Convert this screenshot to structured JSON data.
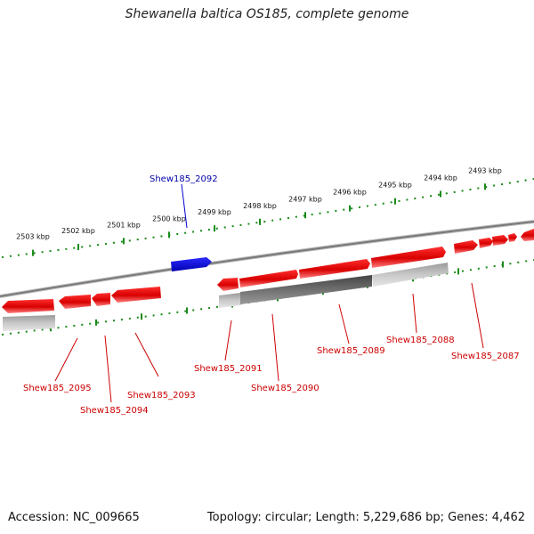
{
  "title": "Shewanella baltica OS185, complete genome",
  "footer": {
    "accession": "Accession: NC_009665",
    "summary": "Topology: circular; Length: 5,229,686 bp; Genes: 4,462"
  },
  "colors": {
    "forward_gene": "#e00000",
    "reverse_gene": "#e00000",
    "highlight_gene": "#0000cc",
    "genome_line": "#888888",
    "ticks": "#1a8a1a",
    "label_red": "#cc0000",
    "label_blue": "#0000aa"
  },
  "scale_labels": [
    "2503 kbp",
    "2502 kbp",
    "2501 kbp",
    "2500 kbp",
    "2499 kbp",
    "2498 kbp",
    "2497 kbp",
    "2496 kbp",
    "2495 kbp",
    "2494 kbp",
    "2493 kbp"
  ],
  "gene_labels": [
    {
      "text": "Shew185_2092",
      "color": "blue"
    },
    {
      "text": "Shew185_2095",
      "color": "red"
    },
    {
      "text": "Shew185_2094",
      "color": "red"
    },
    {
      "text": "Shew185_2093",
      "color": "red"
    },
    {
      "text": "Shew185_2091",
      "color": "red"
    },
    {
      "text": "Shew185_2090",
      "color": "red"
    },
    {
      "text": "Shew185_2089",
      "color": "red"
    },
    {
      "text": "Shew185_2088",
      "color": "red"
    },
    {
      "text": "Shew185_2087",
      "color": "red"
    }
  ]
}
